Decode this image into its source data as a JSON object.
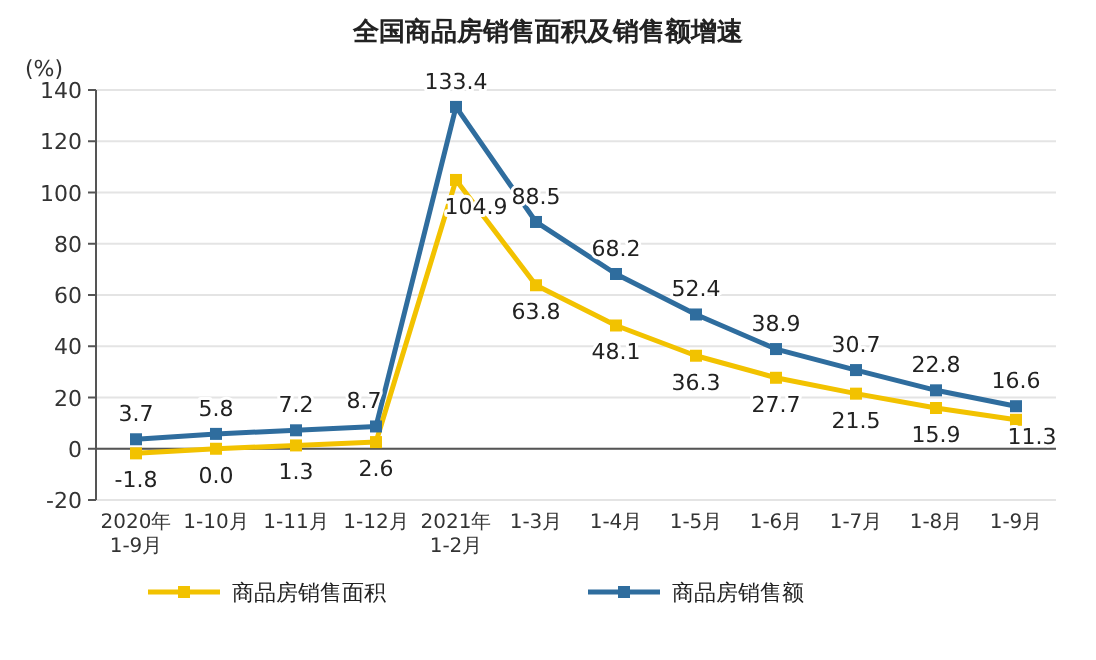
{
  "chart_data": {
    "type": "line",
    "title": "全国商品房销售面积及销售额增速",
    "ylabel": "(%)",
    "categories": [
      "2020年 1-9月",
      "1-10月",
      "1-11月",
      "1-12月",
      "2021年 1-2月",
      "1-3月",
      "1-4月",
      "1-5月",
      "1-6月",
      "1-7月",
      "1-8月",
      "1-9月"
    ],
    "series": [
      {
        "name": "商品房销售面积",
        "color": "#f2c200",
        "values": [
          -1.8,
          0,
          1.3,
          2.6,
          104.9,
          63.8,
          48.1,
          36.3,
          27.7,
          21.5,
          15.9,
          11.3
        ],
        "value_labels": [
          "-1.8",
          "0.0",
          "1.3",
          "2.6",
          "104.9",
          "63.8",
          "48.1",
          "36.3",
          "27.7",
          "21.5",
          "15.9",
          "11.3"
        ]
      },
      {
        "name": "商品房销售额",
        "color": "#2f6d9e",
        "values": [
          3.7,
          5.8,
          7.2,
          8.7,
          133.4,
          88.5,
          68.2,
          52.4,
          38.9,
          30.7,
          22.8,
          16.6
        ],
        "value_labels": [
          "3.7",
          "5.8",
          "7.2",
          "8.7",
          "133.4",
          "88.5",
          "68.2",
          "52.4",
          "38.9",
          "30.7",
          "22.8",
          "16.6"
        ]
      }
    ],
    "ylim": [
      -20,
      140
    ],
    "yticks": [
      -20,
      0,
      20,
      40,
      60,
      80,
      100,
      120,
      140
    ],
    "marker": "square",
    "legend": "bottom",
    "grid": "y"
  }
}
